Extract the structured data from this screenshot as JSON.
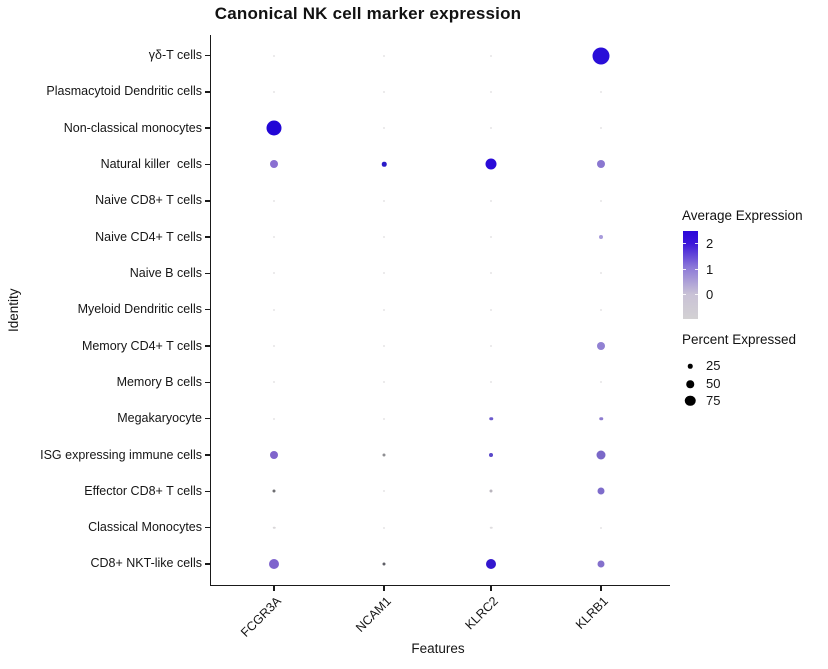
{
  "title": "Canonical NK cell marker expression",
  "x_axis": {
    "label": "Features"
  },
  "y_axis": {
    "label": "Identity"
  },
  "legend": {
    "expression": {
      "title": "Average Expression",
      "ticks": [
        "2",
        "1",
        "0"
      ],
      "gradient_high": "#2b07da",
      "gradient_mid": "#8e7bd8",
      "gradient_low": "#d3d1d3"
    },
    "percent": {
      "title": "Percent Expressed",
      "items": [
        {
          "label": "25",
          "d": 4.5
        },
        {
          "label": "50",
          "d": 7.5
        },
        {
          "label": "75",
          "d": 10.5
        }
      ]
    }
  },
  "chart_data": {
    "type": "scatter",
    "subtype": "dot-plot",
    "title": "Canonical NK cell marker expression",
    "xlabel": "Features",
    "ylabel": "Identity",
    "x": [
      "FCGR3A",
      "NCAM1",
      "KLRC2",
      "KLRB1"
    ],
    "y": [
      "γδ-T cells",
      "Plasmacytoid Dendritic cells",
      "Non-classical monocytes",
      "Natural killer  cells",
      "Naive CD8+ T cells",
      "Naive CD4+ T cells",
      "Naive B cells",
      "Myeloid Dendritic cells",
      "Memory CD4+ T cells",
      "Memory B cells",
      "Megakaryocyte",
      "ISG expressing immune cells",
      "Effector CD8+ T cells",
      "Classical Monocytes",
      "CD8+ NKT-like cells"
    ],
    "cell_format": [
      "pct_expressed",
      "avg_expression",
      "dot_diameter_px",
      "dot_color"
    ],
    "dots": [
      [
        [
          5,
          0,
          2,
          "#E7E5E7"
        ],
        [
          5,
          0,
          2,
          "#E7E5E7"
        ],
        [
          5,
          0,
          2,
          "#E7E5E7"
        ],
        [
          95,
          2.5,
          17,
          "#2A0ED8"
        ]
      ],
      [
        [
          5,
          0,
          2,
          "#E7E5E7"
        ],
        [
          5,
          0,
          2,
          "#E7E5E7"
        ],
        [
          5,
          0,
          2,
          "#E7E5E7"
        ],
        [
          5,
          0,
          2,
          "#E7E5E7"
        ]
      ],
      [
        [
          90,
          2.5,
          15,
          "#2206D6"
        ],
        [
          5,
          0,
          2,
          "#E7E5E7"
        ],
        [
          5,
          0,
          2,
          "#E7E5E7"
        ],
        [
          5,
          0,
          2,
          "#E7E5E7"
        ]
      ],
      [
        [
          55,
          1.2,
          8,
          "#8A6FD1"
        ],
        [
          28,
          2.2,
          4.5,
          "#2A1BC8"
        ],
        [
          80,
          2.5,
          11,
          "#2A0BD8"
        ],
        [
          55,
          1.1,
          8,
          "#8A77D0"
        ]
      ],
      [
        [
          5,
          0,
          2,
          "#E7E5E7"
        ],
        [
          5,
          0,
          2,
          "#E7E5E7"
        ],
        [
          5,
          0,
          2,
          "#E7E5E7"
        ],
        [
          5,
          0,
          2,
          "#E7E5E7"
        ]
      ],
      [
        [
          5,
          0,
          2,
          "#E7E5E7"
        ],
        [
          5,
          0,
          2,
          "#E7E5E7"
        ],
        [
          5,
          0,
          2,
          "#E7E5E7"
        ],
        [
          22,
          0.7,
          4,
          "#A89BDB"
        ]
      ],
      [
        [
          5,
          0,
          2,
          "#E7E5E7"
        ],
        [
          5,
          0,
          2,
          "#E7E5E7"
        ],
        [
          5,
          0,
          2,
          "#E7E5E7"
        ],
        [
          5,
          0,
          2,
          "#E7E5E7"
        ]
      ],
      [
        [
          5,
          0,
          2,
          "#E7E5E7"
        ],
        [
          5,
          0,
          2,
          "#E7E5E7"
        ],
        [
          5,
          0,
          2,
          "#E7E5E7"
        ],
        [
          5,
          0,
          2,
          "#E7E5E7"
        ]
      ],
      [
        [
          5,
          0,
          2,
          "#E7E5E7"
        ],
        [
          5,
          0,
          2,
          "#E7E5E7"
        ],
        [
          5,
          0,
          2,
          "#E7E5E7"
        ],
        [
          55,
          1.0,
          8,
          "#9181D3"
        ]
      ],
      [
        [
          5,
          0,
          2,
          "#E7E5E7"
        ],
        [
          5,
          0,
          2,
          "#E7E5E7"
        ],
        [
          5,
          0,
          2,
          "#E7E5E7"
        ],
        [
          5,
          0,
          2,
          "#E7E5E7"
        ]
      ],
      [
        [
          5,
          0,
          2,
          "#E7E5E7"
        ],
        [
          5,
          0,
          2,
          "#E7E5E7"
        ],
        [
          18,
          1.5,
          3.5,
          "#6C5ACD"
        ],
        [
          18,
          1.1,
          3.5,
          "#8E7CD0"
        ]
      ],
      [
        [
          55,
          1.3,
          8,
          "#8065CC"
        ],
        [
          15,
          0.2,
          3,
          "#8F8F93"
        ],
        [
          22,
          1.7,
          4,
          "#5948C9"
        ],
        [
          62,
          1.2,
          9,
          "#7A68C8"
        ]
      ],
      [
        [
          15,
          0.2,
          3,
          "#6E6E72"
        ],
        [
          5,
          0,
          2,
          "#E7E5E7"
        ],
        [
          15,
          0.3,
          3,
          "#B9B5BD"
        ],
        [
          48,
          1.2,
          7,
          "#7E6CCB"
        ]
      ],
      [
        [
          8,
          0.1,
          2.5,
          "#D9D7D9"
        ],
        [
          5,
          0,
          2,
          "#E7E5E7"
        ],
        [
          8,
          0.1,
          2.5,
          "#E0DEE0"
        ],
        [
          5,
          0,
          2,
          "#E7E5E7"
        ]
      ],
      [
        [
          72,
          1.3,
          10,
          "#7E63CD"
        ],
        [
          15,
          0.2,
          3,
          "#5F5F66"
        ],
        [
          72,
          2.4,
          10,
          "#3317CE"
        ],
        [
          48,
          1.2,
          7,
          "#8470CC"
        ]
      ]
    ],
    "layout_hints": {
      "grid": false,
      "legend_position": "right",
      "x_tick_angle": 45
    }
  }
}
